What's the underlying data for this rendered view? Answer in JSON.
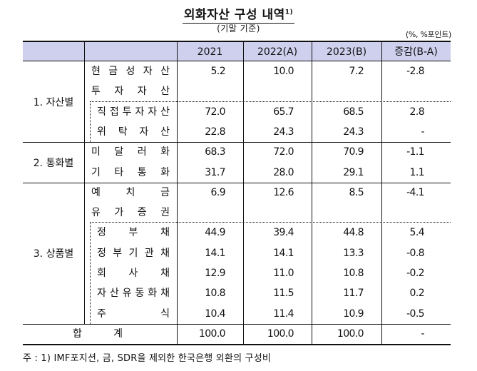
{
  "title": {
    "main": "외화자산 구성 내역",
    "footnote_marker": "1)",
    "subtitle": "(기말 기준)",
    "unit": "(%, %포인트)"
  },
  "table": {
    "columns": [
      "",
      "",
      "2021",
      "2022(A)",
      "2023(B)",
      "증감(B-A)"
    ],
    "groups": [
      {
        "label": "1. 자산별",
        "rows": [
          {
            "item": "현금성자산",
            "indent": false,
            "v2021": "5.2",
            "v2022": "10.0",
            "v2023": "7.2",
            "change": "-2.8"
          },
          {
            "item": "투자자산",
            "indent": false,
            "v2021": "",
            "v2022": "",
            "v2023": "",
            "change": ""
          },
          {
            "item": "직접투자자산",
            "indent": true,
            "v2021": "72.0",
            "v2022": "65.7",
            "v2023": "68.5",
            "change": "2.8"
          },
          {
            "item": "위탁자산",
            "indent": true,
            "v2021": "22.8",
            "v2022": "24.3",
            "v2023": "24.3",
            "change": "-"
          }
        ]
      },
      {
        "label": "2. 통화별",
        "rows": [
          {
            "item": "미달러화",
            "indent": false,
            "v2021": "68.3",
            "v2022": "72.0",
            "v2023": "70.9",
            "change": "-1.1"
          },
          {
            "item": "기타통화",
            "indent": false,
            "v2021": "31.7",
            "v2022": "28.0",
            "v2023": "29.1",
            "change": "1.1"
          }
        ]
      },
      {
        "label": "3. 상품별",
        "rows": [
          {
            "item": "예치금",
            "indent": false,
            "v2021": "6.9",
            "v2022": "12.6",
            "v2023": "8.5",
            "change": "-4.1"
          },
          {
            "item": "유가증권",
            "indent": false,
            "v2021": "",
            "v2022": "",
            "v2023": "",
            "change": ""
          },
          {
            "item": "정부채",
            "indent": true,
            "v2021": "44.9",
            "v2022": "39.4",
            "v2023": "44.8",
            "change": "5.4"
          },
          {
            "item": "정부기관채",
            "indent": true,
            "v2021": "14.1",
            "v2022": "14.1",
            "v2023": "13.3",
            "change": "-0.8"
          },
          {
            "item": "회사채",
            "indent": true,
            "v2021": "12.9",
            "v2022": "11.0",
            "v2023": "10.8",
            "change": "-0.2"
          },
          {
            "item": "자산유동화채",
            "indent": true,
            "v2021": "10.8",
            "v2022": "11.5",
            "v2023": "11.7",
            "change": "0.2"
          },
          {
            "item": "주식",
            "indent": true,
            "v2021": "10.4",
            "v2022": "11.4",
            "v2023": "10.9",
            "change": "-0.5"
          }
        ]
      }
    ],
    "total": {
      "label": "합계",
      "v2021": "100.0",
      "v2022": "100.0",
      "v2023": "100.0",
      "change": "-"
    }
  },
  "footnote": "주 : 1) IMF포지션, 금, SDR을 제외한 한국은행 외환의 구성비"
}
